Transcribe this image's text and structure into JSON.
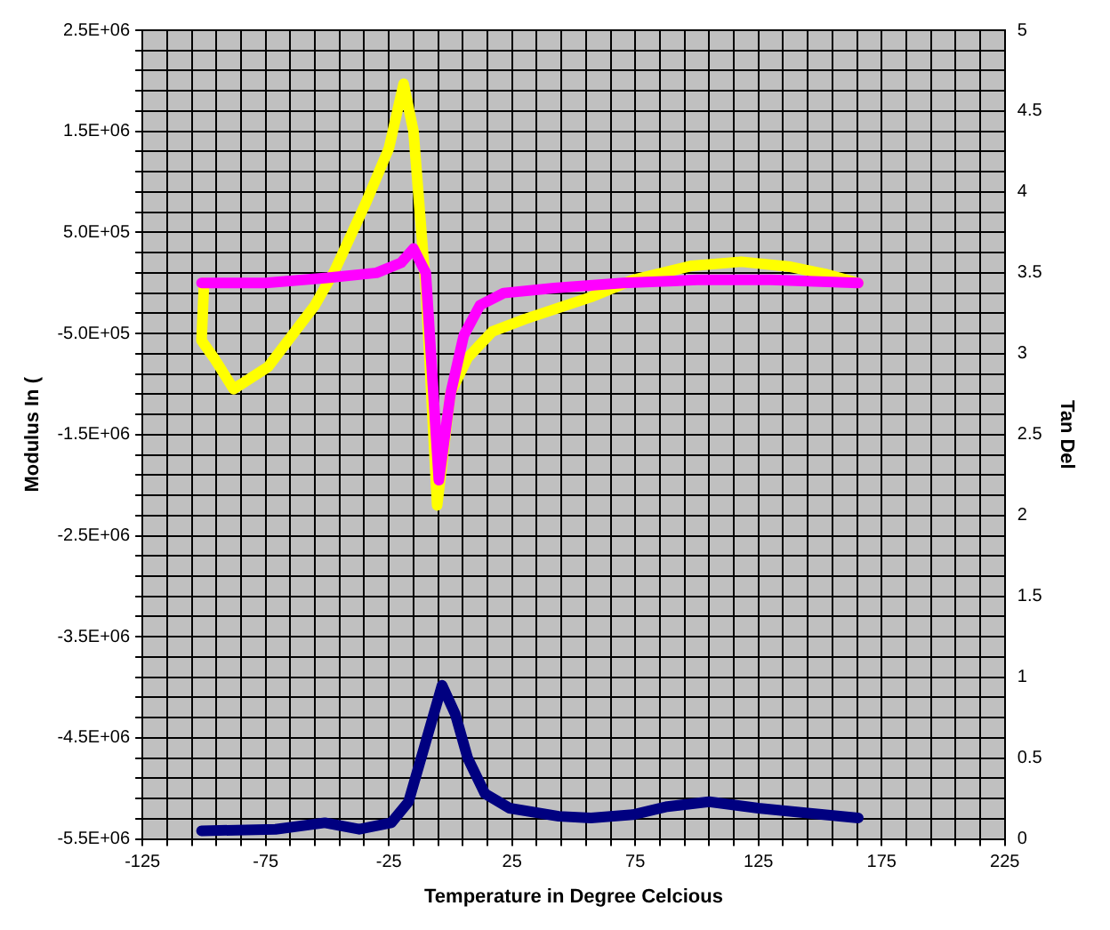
{
  "chart_data": {
    "type": "line",
    "xlabel": "Temperature in Degree Celcious",
    "ylabel": "Modulus In (",
    "y2label": "Tan Del",
    "xlim": [
      -125,
      225
    ],
    "xticks": [
      -125,
      {
        "value": -115,
        "label": null
      },
      {
        "value": -105,
        "label": null
      },
      {
        "value": -95,
        "label": null
      },
      {
        "value": -85,
        "label": null
      },
      -75,
      {
        "value": -65,
        "label": null
      },
      {
        "value": -55,
        "label": null
      },
      {
        "value": -45,
        "label": null
      },
      {
        "value": -35,
        "label": null
      },
      -25,
      {
        "value": -15,
        "label": null
      },
      {
        "value": -5,
        "label": null
      },
      {
        "value": 5,
        "label": null
      },
      {
        "value": 15,
        "label": null
      },
      25,
      {
        "value": 35,
        "label": null
      },
      {
        "value": 45,
        "label": null
      },
      {
        "value": 55,
        "label": null
      },
      {
        "value": 65,
        "label": null
      },
      75,
      {
        "value": 85,
        "label": null
      },
      {
        "value": 95,
        "label": null
      },
      {
        "value": 105,
        "label": null
      },
      {
        "value": 115,
        "label": null
      },
      125,
      {
        "value": 135,
        "label": null
      },
      {
        "value": 145,
        "label": null
      },
      {
        "value": 155,
        "label": null
      },
      {
        "value": 165,
        "label": null
      },
      175,
      {
        "value": 185,
        "label": null
      },
      {
        "value": 195,
        "label": null
      },
      {
        "value": 205,
        "label": null
      },
      {
        "value": 215,
        "label": null
      },
      225
    ],
    "ylim": [
      -5500000,
      2500000
    ],
    "yticks": [
      {
        "value": -5500000,
        "label": "-5.5E+06"
      },
      {
        "value": -5300000,
        "label": null
      },
      {
        "value": -5100000,
        "label": null
      },
      {
        "value": -4900000,
        "label": null
      },
      {
        "value": -4700000,
        "label": null
      },
      {
        "value": -4500000,
        "label": "-4.5E+06"
      },
      {
        "value": -4300000,
        "label": null
      },
      {
        "value": -4100000,
        "label": null
      },
      {
        "value": -3900000,
        "label": null
      },
      {
        "value": -3700000,
        "label": null
      },
      {
        "value": -3500000,
        "label": "-3.5E+06"
      },
      {
        "value": -3300000,
        "label": null
      },
      {
        "value": -3100000,
        "label": null
      },
      {
        "value": -2900000,
        "label": null
      },
      {
        "value": -2700000,
        "label": null
      },
      {
        "value": -2500000,
        "label": "-2.5E+06"
      },
      {
        "value": -2300000,
        "label": null
      },
      {
        "value": -2100000,
        "label": null
      },
      {
        "value": -1900000,
        "label": null
      },
      {
        "value": -1700000,
        "label": null
      },
      {
        "value": -1500000,
        "label": "-1.5E+06"
      },
      {
        "value": -1300000,
        "label": null
      },
      {
        "value": -1100000,
        "label": null
      },
      {
        "value": -900000,
        "label": null
      },
      {
        "value": -700000,
        "label": null
      },
      {
        "value": -500000,
        "label": "-5.0E+05"
      },
      {
        "value": -300000,
        "label": null
      },
      {
        "value": -100000,
        "label": null
      },
      {
        "value": 100000,
        "label": null
      },
      {
        "value": 300000,
        "label": null
      },
      {
        "value": 500000,
        "label": "5.0E+05"
      },
      {
        "value": 700000,
        "label": null
      },
      {
        "value": 900000,
        "label": null
      },
      {
        "value": 1100000,
        "label": null
      },
      {
        "value": 1300000,
        "label": null
      },
      {
        "value": 1500000,
        "label": "1.5E+06"
      },
      {
        "value": 1700000,
        "label": null
      },
      {
        "value": 1900000,
        "label": null
      },
      {
        "value": 2100000,
        "label": null
      },
      {
        "value": 2300000,
        "label": null
      },
      {
        "value": 2500000,
        "label": "2.5E+06"
      }
    ],
    "y2lim": [
      0,
      5
    ],
    "y2ticks": [
      0,
      0.5,
      1,
      1.5,
      2,
      2.5,
      3,
      3.5,
      4,
      4.5,
      5
    ],
    "grid": true,
    "legend": false,
    "marker": "none",
    "line_style": "solid",
    "series": [
      {
        "color": "#ff00ff",
        "x": [
          -101,
          -75,
          -50,
          -30,
          -20,
          -15,
          -10,
          -4.7,
          0,
          5.4,
          12,
          21.6,
          42,
          70,
          100,
          130,
          165.5
        ],
        "values": [
          0,
          0,
          50000,
          100000,
          200000,
          340000,
          100000,
          -1950000,
          -1100000,
          -520000,
          -220000,
          -100000,
          -50000,
          0,
          30000,
          30000,
          0
        ]
      },
      {
        "color": "#ffff00",
        "x": [
          -100,
          -101,
          -96,
          -88,
          -74,
          -55,
          -47,
          -34,
          -25,
          -19,
          -15,
          -10,
          -5.4,
          0,
          7,
          17,
          30,
          57,
          74,
          98,
          118,
          138,
          152,
          165.5
        ],
        "values": [
          0,
          -570000,
          -740000,
          -1050000,
          -830000,
          -220000,
          120000,
          810000,
          1330000,
          1970000,
          1500000,
          -50000,
          -2200000,
          -1090000,
          -740000,
          -480000,
          -360000,
          -140000,
          30000,
          170000,
          210000,
          160000,
          90000,
          0
        ]
      },
      {
        "color": "#000080",
        "axis": "y2",
        "x": [
          -101,
          -71,
          -51,
          -37,
          -24,
          -17,
          -10,
          -3.4,
          2,
          7,
          14,
          24,
          44,
          57,
          74,
          88,
          105,
          125,
          145,
          165.5
        ],
        "values": [
          0.05,
          0.06,
          0.1,
          0.06,
          0.1,
          0.23,
          0.6,
          0.95,
          0.77,
          0.5,
          0.28,
          0.19,
          0.14,
          0.13,
          0.15,
          0.2,
          0.23,
          0.19,
          0.16,
          0.13
        ]
      }
    ]
  }
}
